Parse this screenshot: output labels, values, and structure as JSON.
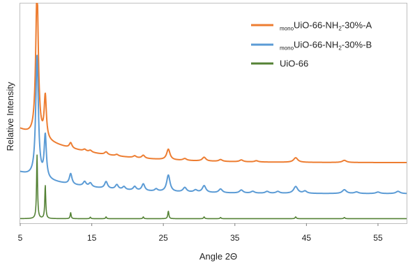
{
  "chart_data": {
    "type": "line",
    "xlabel": "Angle 2Θ",
    "ylabel": "Relative Intensity",
    "xlim": [
      5,
      59
    ],
    "x_ticks": [
      5,
      15,
      25,
      35,
      45,
      55
    ],
    "y_ticks_shown": false,
    "grid": false,
    "legend_position": "top-right",
    "series": [
      {
        "legend": {
          "sub": "mono",
          "main": "UiO-66-NH",
          "sub2": "2",
          "tail": "-30%-A"
        },
        "color": "#ED7D31",
        "baseline": 0.25,
        "amplitude": 1.0,
        "background": {
          "start": 0.16,
          "decay": 0.55,
          "rate": 0.12
        },
        "peaks": [
          {
            "x": 7.35,
            "h": 0.98,
            "w": 0.22
          },
          {
            "x": 8.5,
            "h": 0.28,
            "w": 0.18
          },
          {
            "x": 12.05,
            "h": 0.035,
            "w": 0.22
          },
          {
            "x": 14.0,
            "h": 0.012,
            "w": 0.25
          },
          {
            "x": 14.8,
            "h": 0.012,
            "w": 0.25
          },
          {
            "x": 17.0,
            "h": 0.018,
            "w": 0.25
          },
          {
            "x": 18.5,
            "h": 0.01,
            "w": 0.25
          },
          {
            "x": 21.0,
            "h": 0.012,
            "w": 0.25
          },
          {
            "x": 22.2,
            "h": 0.02,
            "w": 0.25
          },
          {
            "x": 25.7,
            "h": 0.07,
            "w": 0.28
          },
          {
            "x": 28.0,
            "h": 0.012,
            "w": 0.3
          },
          {
            "x": 30.7,
            "h": 0.025,
            "w": 0.3
          },
          {
            "x": 33.0,
            "h": 0.012,
            "w": 0.3
          },
          {
            "x": 35.9,
            "h": 0.012,
            "w": 0.3
          },
          {
            "x": 38.0,
            "h": 0.008,
            "w": 0.3
          },
          {
            "x": 43.5,
            "h": 0.03,
            "w": 0.35
          },
          {
            "x": 50.3,
            "h": 0.014,
            "w": 0.35
          }
        ]
      },
      {
        "legend": {
          "sub": "mono",
          "main": "UiO-66-NH",
          "sub2": "2",
          "tail": "-30%-B"
        },
        "color": "#5B9BD5",
        "baseline": 0.045,
        "amplitude": 1.0,
        "background": {
          "start": 0.1,
          "decay": 0.35,
          "rate": 0.12
        },
        "peaks": [
          {
            "x": 7.35,
            "h": 0.8,
            "w": 0.22
          },
          {
            "x": 8.5,
            "h": 0.28,
            "w": 0.18
          },
          {
            "x": 12.05,
            "h": 0.07,
            "w": 0.22
          },
          {
            "x": 14.0,
            "h": 0.03,
            "w": 0.25
          },
          {
            "x": 14.8,
            "h": 0.025,
            "w": 0.25
          },
          {
            "x": 17.0,
            "h": 0.045,
            "w": 0.25
          },
          {
            "x": 18.5,
            "h": 0.03,
            "w": 0.25
          },
          {
            "x": 19.5,
            "h": 0.02,
            "w": 0.25
          },
          {
            "x": 21.0,
            "h": 0.025,
            "w": 0.25
          },
          {
            "x": 22.2,
            "h": 0.045,
            "w": 0.25
          },
          {
            "x": 24.0,
            "h": 0.015,
            "w": 0.25
          },
          {
            "x": 25.7,
            "h": 0.11,
            "w": 0.28
          },
          {
            "x": 28.0,
            "h": 0.03,
            "w": 0.3
          },
          {
            "x": 29.5,
            "h": 0.015,
            "w": 0.3
          },
          {
            "x": 30.7,
            "h": 0.045,
            "w": 0.3
          },
          {
            "x": 33.0,
            "h": 0.025,
            "w": 0.3
          },
          {
            "x": 35.9,
            "h": 0.02,
            "w": 0.3
          },
          {
            "x": 37.5,
            "h": 0.012,
            "w": 0.3
          },
          {
            "x": 39.5,
            "h": 0.012,
            "w": 0.3
          },
          {
            "x": 41.0,
            "h": 0.012,
            "w": 0.3
          },
          {
            "x": 43.5,
            "h": 0.045,
            "w": 0.35
          },
          {
            "x": 44.8,
            "h": 0.015,
            "w": 0.3
          },
          {
            "x": 50.3,
            "h": 0.025,
            "w": 0.35
          },
          {
            "x": 52.0,
            "h": 0.01,
            "w": 0.35
          },
          {
            "x": 55.0,
            "h": 0.01,
            "w": 0.35
          },
          {
            "x": 57.8,
            "h": 0.015,
            "w": 0.35
          }
        ]
      },
      {
        "legend": {
          "sub": "",
          "main": "UiO-66",
          "sub2": "",
          "tail": ""
        },
        "color": "#548235",
        "baseline": -0.12,
        "amplitude": 1.0,
        "background": {
          "start": 0.0,
          "decay": 0.0,
          "rate": 0.1
        },
        "peaks": [
          {
            "x": 7.35,
            "h": 0.42,
            "w": 0.08
          },
          {
            "x": 8.5,
            "h": 0.22,
            "w": 0.08
          },
          {
            "x": 12.05,
            "h": 0.04,
            "w": 0.08
          },
          {
            "x": 14.8,
            "h": 0.01,
            "w": 0.08
          },
          {
            "x": 17.0,
            "h": 0.012,
            "w": 0.08
          },
          {
            "x": 22.2,
            "h": 0.012,
            "w": 0.08
          },
          {
            "x": 25.7,
            "h": 0.05,
            "w": 0.09
          },
          {
            "x": 30.7,
            "h": 0.012,
            "w": 0.09
          },
          {
            "x": 33.0,
            "h": 0.008,
            "w": 0.09
          },
          {
            "x": 43.5,
            "h": 0.012,
            "w": 0.1
          },
          {
            "x": 50.3,
            "h": 0.008,
            "w": 0.1
          }
        ]
      }
    ],
    "ylim": [
      -0.15,
      1.3
    ]
  }
}
